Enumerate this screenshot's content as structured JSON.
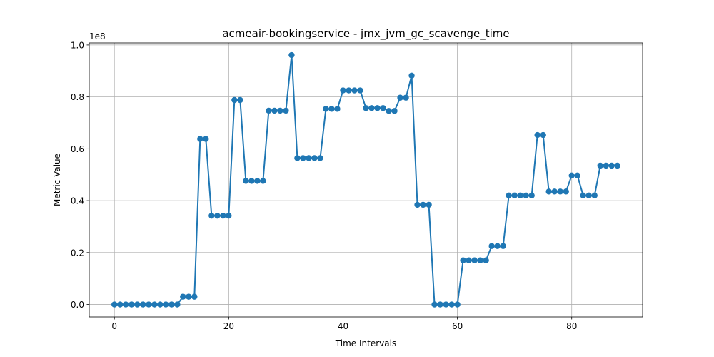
{
  "chart_data": {
    "type": "line",
    "title": "acmeair-bookingservice - jmx_jvm_gc_scavenge_time",
    "xlabel": "Time Intervals",
    "ylabel": "Metric Value",
    "y_offset_label": "1e8",
    "xlim": [
      -4.4,
      92.4
    ],
    "ylim": [
      -0.048,
      1.008
    ],
    "xticks": [
      0,
      20,
      40,
      60,
      80
    ],
    "yticks": [
      0.0,
      0.2,
      0.4,
      0.6,
      0.8,
      1.0
    ],
    "xtick_labels": [
      "0",
      "20",
      "40",
      "60",
      "80"
    ],
    "ytick_labels": [
      "0.0",
      "0.2",
      "0.4",
      "0.6",
      "0.8",
      "1.0"
    ],
    "grid": true,
    "series": [
      {
        "color": "#1f77b4",
        "marker": "circle",
        "x": [
          0,
          1,
          2,
          3,
          4,
          5,
          6,
          7,
          8,
          9,
          10,
          11,
          12,
          13,
          14,
          15,
          16,
          17,
          18,
          19,
          20,
          21,
          22,
          23,
          24,
          25,
          26,
          27,
          28,
          29,
          30,
          31,
          32,
          33,
          34,
          35,
          36,
          37,
          38,
          39,
          40,
          41,
          42,
          43,
          44,
          45,
          46,
          47,
          48,
          49,
          50,
          51,
          52,
          53,
          54,
          55,
          56,
          57,
          58,
          59,
          60,
          61,
          62,
          63,
          64,
          65,
          66,
          67,
          68,
          69,
          70,
          71,
          72,
          73,
          74,
          75,
          76,
          77,
          78,
          79,
          80,
          81,
          82,
          83,
          84,
          85,
          86,
          87,
          88
        ],
        "y": [
          0,
          0,
          0,
          0,
          0,
          0,
          0,
          0,
          0,
          0,
          0,
          0,
          0.03,
          0.03,
          0.03,
          0.638,
          0.638,
          0.342,
          0.342,
          0.342,
          0.342,
          0.788,
          0.788,
          0.476,
          0.476,
          0.476,
          0.476,
          0.747,
          0.747,
          0.747,
          0.747,
          0.961,
          0.564,
          0.564,
          0.564,
          0.564,
          0.564,
          0.754,
          0.754,
          0.754,
          0.825,
          0.825,
          0.825,
          0.825,
          0.757,
          0.757,
          0.757,
          0.757,
          0.746,
          0.746,
          0.797,
          0.797,
          0.882,
          0.384,
          0.384,
          0.384,
          0,
          0,
          0,
          0,
          0,
          0.17,
          0.17,
          0.17,
          0.17,
          0.17,
          0.225,
          0.225,
          0.225,
          0.42,
          0.42,
          0.42,
          0.42,
          0.42,
          0.653,
          0.653,
          0.435,
          0.435,
          0.435,
          0.435,
          0.497,
          0.497,
          0.42,
          0.42,
          0.42,
          0.535,
          0.535,
          0.535,
          0.535
        ]
      }
    ]
  }
}
